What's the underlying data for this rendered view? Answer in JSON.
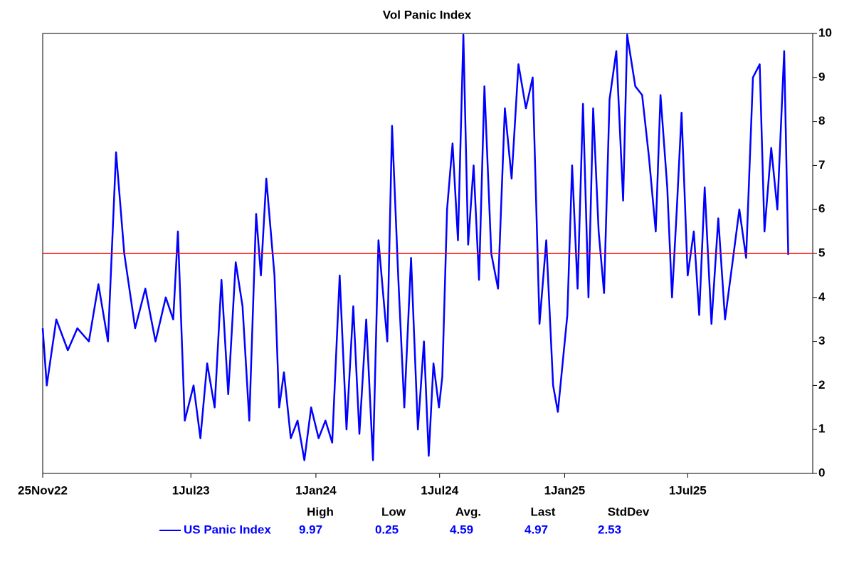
{
  "chart_data": {
    "type": "line",
    "title": "Vol Panic Index",
    "x": [
      "2022-11-25",
      "2022-12-01",
      "2022-12-15",
      "2023-01-01",
      "2023-01-15",
      "2023-02-01",
      "2023-02-15",
      "2023-03-01",
      "2023-03-13",
      "2023-03-25",
      "2023-04-10",
      "2023-04-25",
      "2023-05-10",
      "2023-05-25",
      "2023-06-05",
      "2023-06-12",
      "2023-06-22",
      "2023-07-05",
      "2023-07-15",
      "2023-07-25",
      "2023-08-05",
      "2023-08-15",
      "2023-08-25",
      "2023-09-05",
      "2023-09-15",
      "2023-09-25",
      "2023-10-05",
      "2023-10-12",
      "2023-10-20",
      "2023-11-01",
      "2023-11-08",
      "2023-11-15",
      "2023-11-25",
      "2023-12-05",
      "2023-12-15",
      "2023-12-25",
      "2024-01-05",
      "2024-01-15",
      "2024-01-25",
      "2024-02-05",
      "2024-02-15",
      "2024-02-25",
      "2024-03-05",
      "2024-03-15",
      "2024-03-25",
      "2024-04-02",
      "2024-04-15",
      "2024-04-22",
      "2024-05-01",
      "2024-05-10",
      "2024-05-20",
      "2024-05-30",
      "2024-06-08",
      "2024-06-15",
      "2024-06-22",
      "2024-06-30",
      "2024-07-05",
      "2024-07-12",
      "2024-07-20",
      "2024-07-28",
      "2024-08-05",
      "2024-08-12",
      "2024-08-20",
      "2024-08-28",
      "2024-09-05",
      "2024-09-15",
      "2024-09-25",
      "2024-10-05",
      "2024-10-15",
      "2024-10-25",
      "2024-11-05",
      "2024-11-15",
      "2024-11-25",
      "2024-12-05",
      "2024-12-15",
      "2024-12-22",
      "2025-01-05",
      "2025-01-12",
      "2025-01-20",
      "2025-01-28",
      "2025-02-05",
      "2025-02-12",
      "2025-02-20",
      "2025-02-28",
      "2025-03-08",
      "2025-03-18",
      "2025-03-28",
      "2025-04-03",
      "2025-04-15",
      "2025-04-25",
      "2025-05-05",
      "2025-05-15",
      "2025-05-22",
      "2025-06-01",
      "2025-06-08",
      "2025-06-15",
      "2025-06-22",
      "2025-07-01",
      "2025-07-10",
      "2025-07-18",
      "2025-07-26",
      "2025-08-05",
      "2025-08-15",
      "2025-08-25",
      "2025-09-05",
      "2025-09-15",
      "2025-09-25",
      "2025-10-05",
      "2025-10-15",
      "2025-10-22",
      "2025-11-01",
      "2025-11-10",
      "2025-11-20",
      "2025-11-26"
    ],
    "series": [
      {
        "name": "US Panic Index",
        "color": "#0000ff",
        "values": [
          3.3,
          2.0,
          3.5,
          2.8,
          3.3,
          3.0,
          4.3,
          3.0,
          7.3,
          5.0,
          3.3,
          4.2,
          3.0,
          4.0,
          3.5,
          5.5,
          1.2,
          2.0,
          0.8,
          2.5,
          1.5,
          4.4,
          1.8,
          4.8,
          3.8,
          1.2,
          5.9,
          4.5,
          6.7,
          4.5,
          1.5,
          2.3,
          0.8,
          1.2,
          0.3,
          1.5,
          0.8,
          1.2,
          0.7,
          4.5,
          1.0,
          3.8,
          0.9,
          3.5,
          0.3,
          5.3,
          3.0,
          7.9,
          4.5,
          1.5,
          4.9,
          1.0,
          3.0,
          0.4,
          2.5,
          1.5,
          2.2,
          6.0,
          7.5,
          5.3,
          9.97,
          5.2,
          7.0,
          4.4,
          8.8,
          5.0,
          4.2,
          8.3,
          6.7,
          9.3,
          8.3,
          9.0,
          3.4,
          5.3,
          2.0,
          1.4,
          3.6,
          7.0,
          4.2,
          8.4,
          4.0,
          8.3,
          5.5,
          4.1,
          8.5,
          9.6,
          6.2,
          9.97,
          8.8,
          8.6,
          7.2,
          5.5,
          8.6,
          6.5,
          4.0,
          6.0,
          8.2,
          4.5,
          5.5,
          3.6,
          6.5,
          3.4,
          5.8,
          3.5,
          4.8,
          6.0,
          4.9,
          9.0,
          9.3,
          5.5,
          7.4,
          6.0,
          9.6,
          4.97
        ]
      }
    ],
    "xlim": [
      "2022-11-25",
      "2026-01-01"
    ],
    "xticks": [
      {
        "value": "2022-11-25",
        "label": "25Nov22"
      },
      {
        "value": "2023-07-01",
        "label": "1Jul23"
      },
      {
        "value": "2024-01-01",
        "label": "1Jan24"
      },
      {
        "value": "2024-07-01",
        "label": "1Jul24"
      },
      {
        "value": "2025-01-01",
        "label": "1Jan25"
      },
      {
        "value": "2025-07-01",
        "label": "1Jul25"
      }
    ],
    "ylim": [
      0,
      10
    ],
    "yticks": [
      0,
      1,
      2,
      3,
      4,
      5,
      6,
      7,
      8,
      9,
      10
    ],
    "reference_line": {
      "value": 5,
      "color": "#ff0000"
    },
    "stats": {
      "headers": [
        "High",
        "Low",
        "Avg.",
        "Last",
        "StdDev"
      ],
      "values": [
        9.97,
        0.25,
        4.59,
        4.97,
        2.53
      ]
    }
  }
}
